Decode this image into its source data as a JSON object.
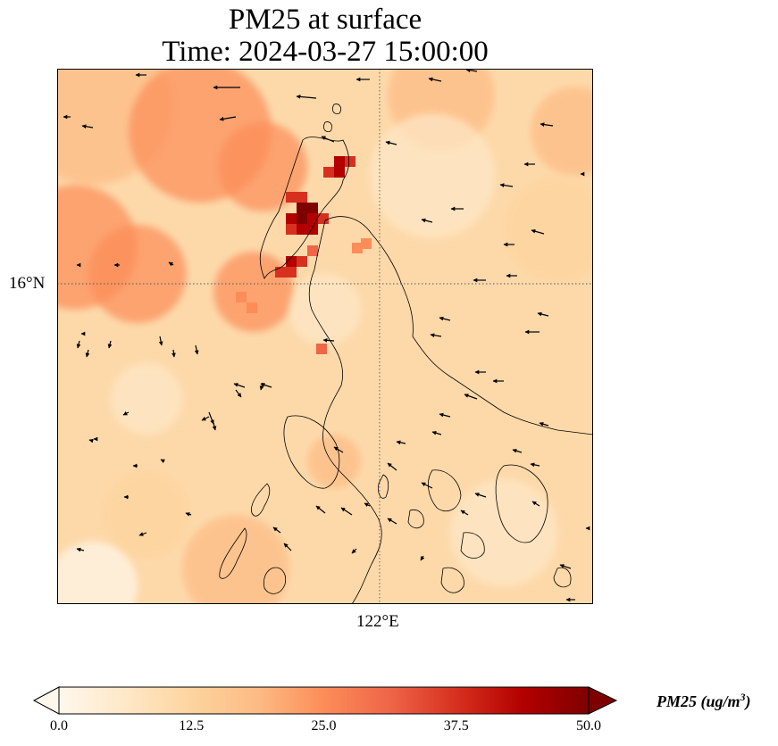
{
  "title": {
    "line1": "PM25 at surface",
    "line2": "Time: 2024-03-27 15:00:00"
  },
  "map": {
    "variable": "PM25",
    "lat_gridline_label": "16°N",
    "lon_gridline_label": "122°E",
    "lat_gridline_value": 16,
    "lon_gridline_value": 122,
    "vectors": "surface wind arrows (predominantly easterly over land and sea)",
    "colormap": [
      "#fff7ec",
      "#fee8c8",
      "#fdd49e",
      "#fdbb84",
      "#fc8d59",
      "#ef6548",
      "#d7301f",
      "#b30000",
      "#7f0000"
    ]
  },
  "colorbar": {
    "ticks": [
      "0.0",
      "12.5",
      "25.0",
      "37.5",
      "50.0"
    ],
    "min": 0.0,
    "max": 50.0,
    "extend": "both",
    "label_var": "PM25",
    "label_unit_open": "(ug/m",
    "label_unit_exp": "3",
    "label_unit_close": ")"
  }
}
